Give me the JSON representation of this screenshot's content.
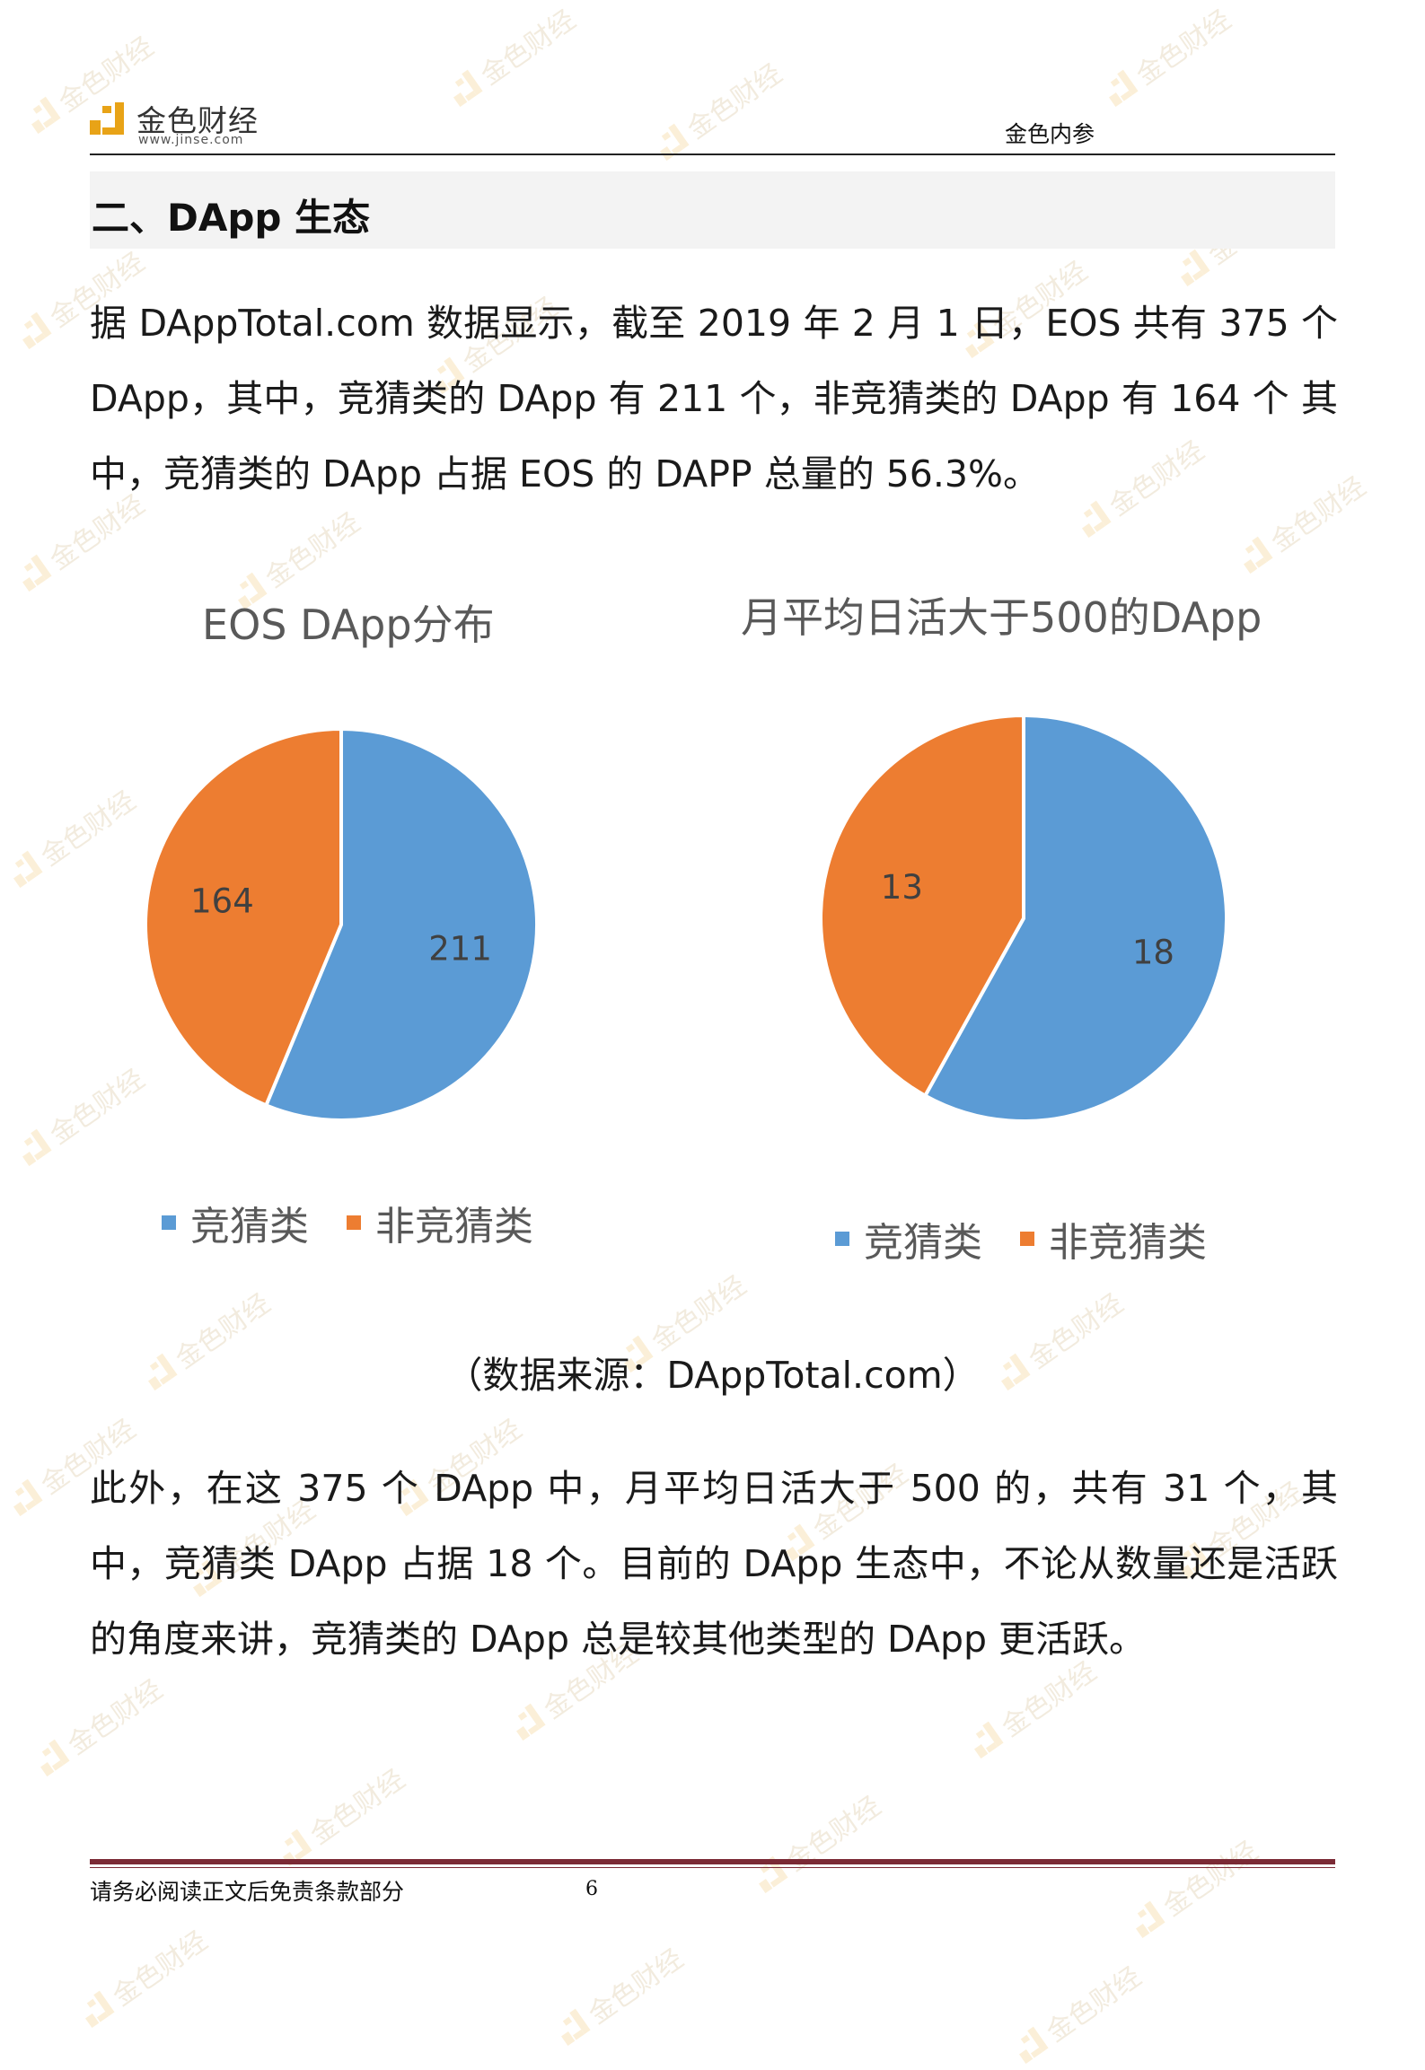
{
  "header": {
    "logo_name": "金色财经",
    "logo_url": "www.jinse.com",
    "publication": "金色内参"
  },
  "section": {
    "title": "二、DApp 生态"
  },
  "paragraph1": "据 DAppTotal.com 数据显示，截至 2019 年 2 月 1 日，EOS 共有 375 个 DApp，其中，竞猜类的 DApp 有 211 个，非竞猜类的 DApp 有 164 个 其中，竞猜类的 DApp 占据 EOS 的 DAPP 总量的 56.3%。",
  "chart_data": [
    {
      "type": "pie",
      "title": "EOS DApp分布",
      "categories": [
        "竞猜类",
        "非竞猜类"
      ],
      "values": [
        211,
        164
      ],
      "data_labels": [
        "211",
        "164"
      ],
      "colors": [
        "#5b9bd5",
        "#ed7d31"
      ],
      "legend_position": "bottom"
    },
    {
      "type": "pie",
      "title": "月平均日活大于500的DApp",
      "categories": [
        "竞猜类",
        "非竞猜类"
      ],
      "values": [
        18,
        13
      ],
      "data_labels": [
        "18",
        "13"
      ],
      "colors": [
        "#5b9bd5",
        "#ed7d31"
      ],
      "legend_position": "bottom"
    }
  ],
  "caption": "（数据来源：DAppTotal.com）",
  "paragraph2": "此外，在这 375 个 DApp 中，月平均日活大于 500 的，共有 31 个，其中，竞猜类 DApp 占据 18 个。目前的 DApp 生态中，不论从数量还是活跃的角度来讲，竞猜类的 DApp 总是较其他类型的 DApp 更活跃。",
  "footer": {
    "disclaimer": "请务必阅读正文后免责条款部分",
    "page_number": "6"
  },
  "watermark": {
    "text": "金色财经",
    "color": "#b08a3a"
  },
  "colors": {
    "series_blue": "#5b9bd5",
    "series_orange": "#ed7d31",
    "footer_rule": "#7b2a35"
  }
}
